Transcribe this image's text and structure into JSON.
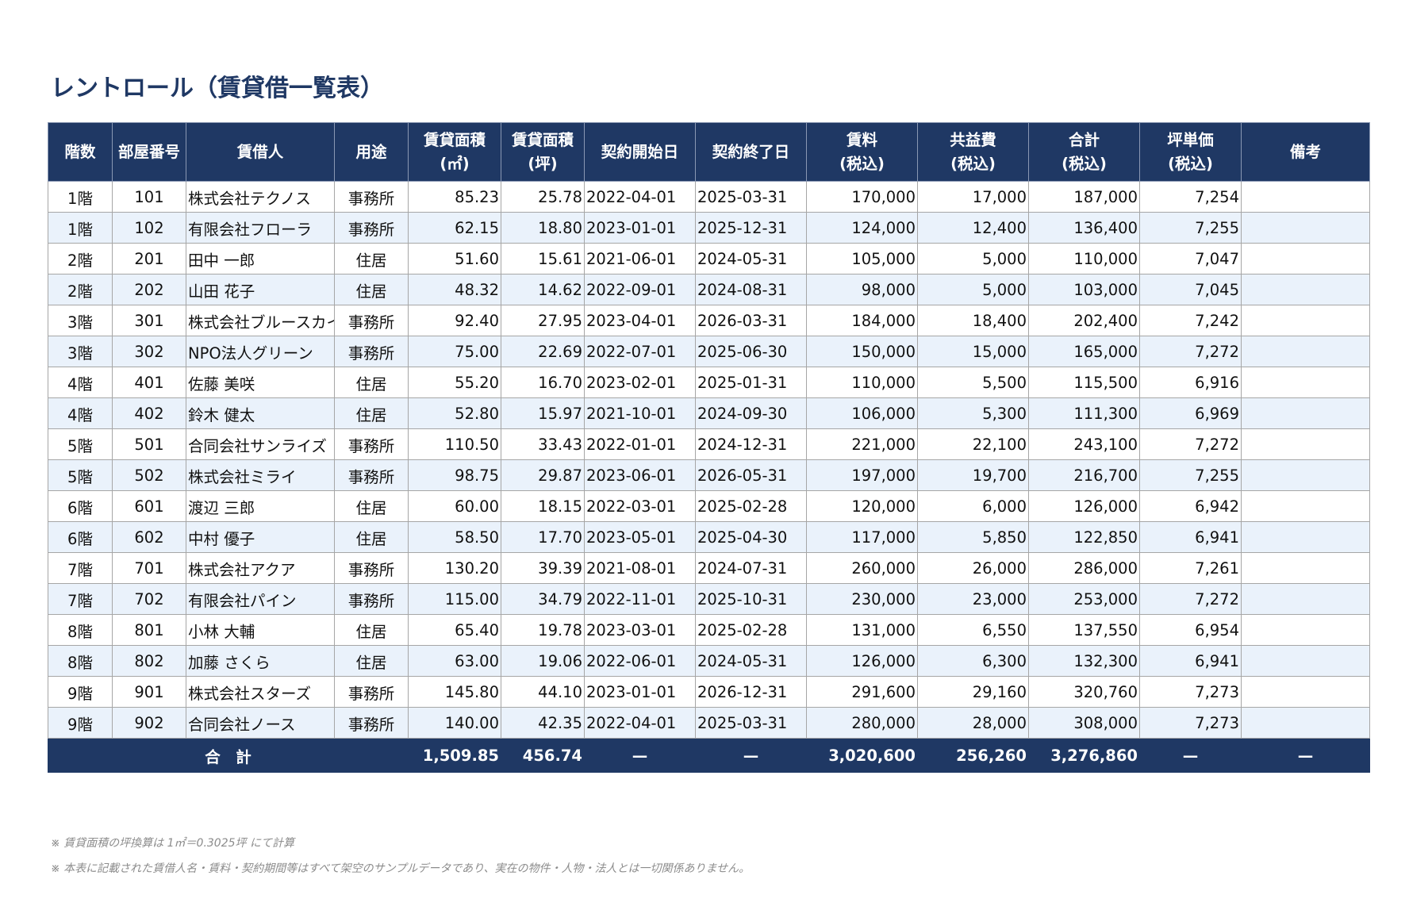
{
  "title": "レントロール（賃貸借一覧表）",
  "headers": [
    {
      "line1": "階数",
      "line2": ""
    },
    {
      "line1": "部屋番号",
      "line2": ""
    },
    {
      "line1": "賃借人",
      "line2": ""
    },
    {
      "line1": "用途",
      "line2": ""
    },
    {
      "line1": "賃貸面積",
      "line2": "(㎡)"
    },
    {
      "line1": "賃貸面積",
      "line2": "(坪)"
    },
    {
      "line1": "契約開始日",
      "line2": ""
    },
    {
      "line1": "契約終了日",
      "line2": ""
    },
    {
      "line1": "賃料",
      "line2": "(税込)"
    },
    {
      "line1": "共益費",
      "line2": "(税込)"
    },
    {
      "line1": "合計",
      "line2": "(税込)"
    },
    {
      "line1": "坪単価",
      "line2": "(税込)"
    },
    {
      "line1": "備考",
      "line2": ""
    }
  ],
  "rows": [
    {
      "floor": "1階",
      "room": "101",
      "tenant": "株式会社テクノス",
      "use": "事務所",
      "area_m2": "85.23",
      "area_tsubo": "25.78",
      "start": "2022-04-01",
      "end": "2025-03-31",
      "rent": "170,000",
      "common": "17,000",
      "total": "187,000",
      "unit": "7,254",
      "note": ""
    },
    {
      "floor": "1階",
      "room": "102",
      "tenant": "有限会社フローラ",
      "use": "事務所",
      "area_m2": "62.15",
      "area_tsubo": "18.80",
      "start": "2023-01-01",
      "end": "2025-12-31",
      "rent": "124,000",
      "common": "12,400",
      "total": "136,400",
      "unit": "7,255",
      "note": ""
    },
    {
      "floor": "2階",
      "room": "201",
      "tenant": "田中 一郎",
      "use": "住居",
      "area_m2": "51.60",
      "area_tsubo": "15.61",
      "start": "2021-06-01",
      "end": "2024-05-31",
      "rent": "105,000",
      "common": "5,000",
      "total": "110,000",
      "unit": "7,047",
      "note": ""
    },
    {
      "floor": "2階",
      "room": "202",
      "tenant": "山田 花子",
      "use": "住居",
      "area_m2": "48.32",
      "area_tsubo": "14.62",
      "start": "2022-09-01",
      "end": "2024-08-31",
      "rent": "98,000",
      "common": "5,000",
      "total": "103,000",
      "unit": "7,045",
      "note": ""
    },
    {
      "floor": "3階",
      "room": "301",
      "tenant": "株式会社ブルースカイ",
      "use": "事務所",
      "area_m2": "92.40",
      "area_tsubo": "27.95",
      "start": "2023-04-01",
      "end": "2026-03-31",
      "rent": "184,000",
      "common": "18,400",
      "total": "202,400",
      "unit": "7,242",
      "note": ""
    },
    {
      "floor": "3階",
      "room": "302",
      "tenant": "NPO法人グリーン",
      "use": "事務所",
      "area_m2": "75.00",
      "area_tsubo": "22.69",
      "start": "2022-07-01",
      "end": "2025-06-30",
      "rent": "150,000",
      "common": "15,000",
      "total": "165,000",
      "unit": "7,272",
      "note": ""
    },
    {
      "floor": "4階",
      "room": "401",
      "tenant": "佐藤 美咲",
      "use": "住居",
      "area_m2": "55.20",
      "area_tsubo": "16.70",
      "start": "2023-02-01",
      "end": "2025-01-31",
      "rent": "110,000",
      "common": "5,500",
      "total": "115,500",
      "unit": "6,916",
      "note": ""
    },
    {
      "floor": "4階",
      "room": "402",
      "tenant": "鈴木 健太",
      "use": "住居",
      "area_m2": "52.80",
      "area_tsubo": "15.97",
      "start": "2021-10-01",
      "end": "2024-09-30",
      "rent": "106,000",
      "common": "5,300",
      "total": "111,300",
      "unit": "6,969",
      "note": ""
    },
    {
      "floor": "5階",
      "room": "501",
      "tenant": "合同会社サンライズ",
      "use": "事務所",
      "area_m2": "110.50",
      "area_tsubo": "33.43",
      "start": "2022-01-01",
      "end": "2024-12-31",
      "rent": "221,000",
      "common": "22,100",
      "total": "243,100",
      "unit": "7,272",
      "note": ""
    },
    {
      "floor": "5階",
      "room": "502",
      "tenant": "株式会社ミライ",
      "use": "事務所",
      "area_m2": "98.75",
      "area_tsubo": "29.87",
      "start": "2023-06-01",
      "end": "2026-05-31",
      "rent": "197,000",
      "common": "19,700",
      "total": "216,700",
      "unit": "7,255",
      "note": ""
    },
    {
      "floor": "6階",
      "room": "601",
      "tenant": "渡辺 三郎",
      "use": "住居",
      "area_m2": "60.00",
      "area_tsubo": "18.15",
      "start": "2022-03-01",
      "end": "2025-02-28",
      "rent": "120,000",
      "common": "6,000",
      "total": "126,000",
      "unit": "6,942",
      "note": ""
    },
    {
      "floor": "6階",
      "room": "602",
      "tenant": "中村 優子",
      "use": "住居",
      "area_m2": "58.50",
      "area_tsubo": "17.70",
      "start": "2023-05-01",
      "end": "2025-04-30",
      "rent": "117,000",
      "common": "5,850",
      "total": "122,850",
      "unit": "6,941",
      "note": ""
    },
    {
      "floor": "7階",
      "room": "701",
      "tenant": "株式会社アクア",
      "use": "事務所",
      "area_m2": "130.20",
      "area_tsubo": "39.39",
      "start": "2021-08-01",
      "end": "2024-07-31",
      "rent": "260,000",
      "common": "26,000",
      "total": "286,000",
      "unit": "7,261",
      "note": ""
    },
    {
      "floor": "7階",
      "room": "702",
      "tenant": "有限会社パイン",
      "use": "事務所",
      "area_m2": "115.00",
      "area_tsubo": "34.79",
      "start": "2022-11-01",
      "end": "2025-10-31",
      "rent": "230,000",
      "common": "23,000",
      "total": "253,000",
      "unit": "7,272",
      "note": ""
    },
    {
      "floor": "8階",
      "room": "801",
      "tenant": "小林 大輔",
      "use": "住居",
      "area_m2": "65.40",
      "area_tsubo": "19.78",
      "start": "2023-03-01",
      "end": "2025-02-28",
      "rent": "131,000",
      "common": "6,550",
      "total": "137,550",
      "unit": "6,954",
      "note": ""
    },
    {
      "floor": "8階",
      "room": "802",
      "tenant": "加藤 さくら",
      "use": "住居",
      "area_m2": "63.00",
      "area_tsubo": "19.06",
      "start": "2022-06-01",
      "end": "2024-05-31",
      "rent": "126,000",
      "common": "6,300",
      "total": "132,300",
      "unit": "6,941",
      "note": ""
    },
    {
      "floor": "9階",
      "room": "901",
      "tenant": "株式会社スターズ",
      "use": "事務所",
      "area_m2": "145.80",
      "area_tsubo": "44.10",
      "start": "2023-01-01",
      "end": "2026-12-31",
      "rent": "291,600",
      "common": "29,160",
      "total": "320,760",
      "unit": "7,273",
      "note": ""
    },
    {
      "floor": "9階",
      "room": "902",
      "tenant": "合同会社ノース",
      "use": "事務所",
      "area_m2": "140.00",
      "area_tsubo": "42.35",
      "start": "2022-04-01",
      "end": "2025-03-31",
      "rent": "280,000",
      "common": "28,000",
      "total": "308,000",
      "unit": "7,273",
      "note": ""
    }
  ],
  "totals": {
    "label": "合　計",
    "area_m2": "1,509.85",
    "area_tsubo": "456.74",
    "start": "—",
    "end": "—",
    "rent": "3,020,600",
    "common": "256,260",
    "total": "3,276,860",
    "unit": "—",
    "note": "—"
  },
  "footnotes": [
    "※ 賃貸面積の坪換算は 1㎡＝0.3025坪 にて計算",
    "※ 本表に記載された賃借人名・賃料・契約期間等はすべて架空のサンプルデータであり、実在の物件・人物・法人とは一切関係ありません。"
  ]
}
